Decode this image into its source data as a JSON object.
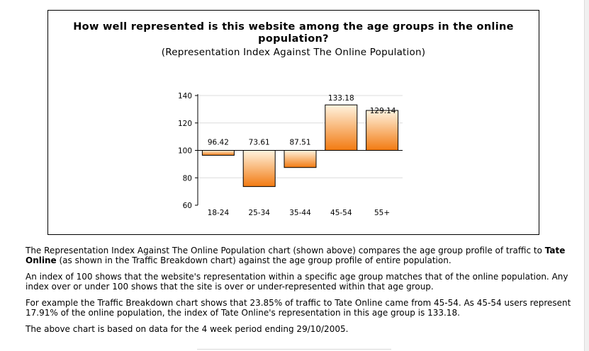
{
  "chart_data": {
    "type": "bar",
    "title": "How well represented is this website among the age groups in the online population?",
    "subtitle": "(Representation Index Against The Online Population)",
    "categories": [
      "18-24",
      "25-34",
      "35-44",
      "45-54",
      "55+"
    ],
    "values": [
      96.42,
      73.61,
      87.51,
      133.18,
      129.14
    ],
    "value_labels": [
      "96.42",
      "73.61",
      "87.51",
      "133.18",
      "129.14"
    ],
    "baseline": 100,
    "ylim": [
      60,
      140
    ],
    "yticks": [
      "60",
      "80",
      "100",
      "120",
      "140"
    ],
    "grid": true,
    "legend": "none",
    "xlabel": "",
    "ylabel": "",
    "colors": {
      "bar_top": "#fff3df",
      "bar_bottom": "#f27a11",
      "bar_stroke": "#000000",
      "grid": "#dcdcdc"
    }
  },
  "body_text": {
    "p1_part1": "The Representation Index Against The Online Population chart (shown above) compares the age group profile of traffic to ",
    "p1_bold": "Tate Online",
    "p1_part2": " (as shown in the Traffic Breakdown chart) against the age group profile of entire population.",
    "p2": "An index of 100 shows that the website's representation within a specific age group matches that of the online population. Any index over or under 100 shows that the site is over or under-represented within that age group.",
    "p3": "For example the Traffic Breakdown chart shows that 23.85% of traffic to Tate Online came from 45-54. As 45-54 users represent 17.91% of the online population, the index of Tate Online's representation in this age group is 133.18.",
    "p4": "The above chart is based on data for the 4 week period ending 29/10/2005."
  }
}
